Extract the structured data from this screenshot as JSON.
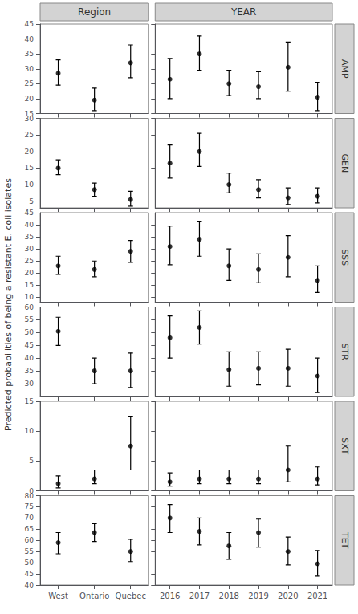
{
  "chart_data": {
    "type": "errorbar",
    "ylabel": "Predicted probabilities of being a resistant E. coli isolates",
    "color": "black",
    "grid": false,
    "columns": [
      {
        "label": "Region",
        "categories": [
          "West",
          "Ontario",
          "Quebec"
        ]
      },
      {
        "label": "YEAR",
        "categories": [
          "2016",
          "2017",
          "2018",
          "2019",
          "2020",
          "2021"
        ]
      }
    ],
    "rows": [
      {
        "label": "AMP",
        "ylim": [
          15,
          45
        ],
        "yticks": [
          15,
          20,
          25,
          30,
          35,
          40,
          45
        ],
        "panels": [
          {
            "values": [
              28.5,
              19.5,
              32.0
            ],
            "lower": [
              24.5,
              16.0,
              27.0
            ],
            "upper": [
              33.0,
              23.5,
              38.0
            ]
          },
          {
            "values": [
              26.5,
              35.0,
              25.0,
              24.0,
              30.5,
              20.5
            ],
            "lower": [
              20.0,
              29.5,
              21.0,
              20.0,
              22.5,
              16.0
            ],
            "upper": [
              33.5,
              41.0,
              29.5,
              29.0,
              39.0,
              25.5
            ]
          }
        ]
      },
      {
        "label": "GEN",
        "ylim": [
          3,
          30
        ],
        "yticks": [
          5,
          10,
          15,
          20,
          25,
          30
        ],
        "panels": [
          {
            "values": [
              15.0,
              8.5,
              5.5
            ],
            "lower": [
              13.0,
              6.5,
              3.5
            ],
            "upper": [
              17.5,
              10.5,
              8.0
            ]
          },
          {
            "values": [
              16.5,
              20.0,
              10.0,
              8.5,
              6.0,
              6.5
            ],
            "lower": [
              12.0,
              15.5,
              7.5,
              6.0,
              4.0,
              4.5
            ],
            "upper": [
              22.0,
              25.5,
              13.5,
              11.5,
              9.0,
              9.0
            ]
          }
        ]
      },
      {
        "label": "SSS",
        "ylim": [
          8,
          45
        ],
        "yticks": [
          10,
          15,
          20,
          25,
          30,
          35,
          40,
          45
        ],
        "panels": [
          {
            "values": [
              23.0,
              21.5,
              29.0
            ],
            "lower": [
              19.5,
              18.5,
              24.5
            ],
            "upper": [
              27.0,
              25.0,
              33.5
            ]
          },
          {
            "values": [
              31.0,
              34.0,
              23.0,
              21.5,
              26.5,
              17.0
            ],
            "lower": [
              23.5,
              27.0,
              17.0,
              16.0,
              18.5,
              12.0
            ],
            "upper": [
              39.5,
              41.5,
              30.0,
              28.0,
              35.5,
              23.0
            ]
          }
        ]
      },
      {
        "label": "STR",
        "ylim": [
          25,
          60
        ],
        "yticks": [
          30,
          35,
          40,
          45,
          50,
          55,
          60
        ],
        "panels": [
          {
            "values": [
              50.5,
              35.0,
              35.0
            ],
            "lower": [
              45.0,
              30.0,
              28.5
            ],
            "upper": [
              56.0,
              40.0,
              42.0
            ]
          },
          {
            "values": [
              48.0,
              52.0,
              35.5,
              36.0,
              36.0,
              33.0
            ],
            "lower": [
              40.0,
              45.5,
              29.0,
              29.5,
              29.0,
              26.5
            ],
            "upper": [
              56.5,
              58.5,
              42.5,
              42.5,
              43.5,
              40.0
            ]
          }
        ]
      },
      {
        "label": "SXT",
        "ylim": [
          0,
          15
        ],
        "yticks": [
          0,
          5,
          10,
          15
        ],
        "panels": [
          {
            "values": [
              1.2,
              2.0,
              7.5
            ],
            "lower": [
              0.5,
              1.2,
              3.5
            ],
            "upper": [
              2.5,
              3.5,
              12.5
            ]
          },
          {
            "values": [
              1.5,
              2.0,
              2.0,
              2.0,
              3.5,
              2.0
            ],
            "lower": [
              0.8,
              1.2,
              1.2,
              1.2,
              1.5,
              1.0
            ],
            "upper": [
              3.0,
              3.5,
              3.5,
              3.5,
              7.5,
              4.0
            ]
          }
        ]
      },
      {
        "label": "TET",
        "ylim": [
          40,
          80
        ],
        "yticks": [
          40,
          45,
          50,
          55,
          60,
          65,
          70,
          75,
          80
        ],
        "panels": [
          {
            "values": [
              59.0,
              63.5,
              55.0
            ],
            "lower": [
              54.0,
              59.5,
              50.5
            ],
            "upper": [
              63.5,
              67.5,
              60.5
            ]
          },
          {
            "values": [
              70.0,
              64.0,
              57.5,
              63.5,
              55.0,
              49.5
            ],
            "lower": [
              63.5,
              58.0,
              51.5,
              57.0,
              49.0,
              44.0
            ],
            "upper": [
              76.0,
              70.0,
              63.5,
              69.5,
              61.5,
              55.5
            ]
          }
        ]
      }
    ]
  }
}
